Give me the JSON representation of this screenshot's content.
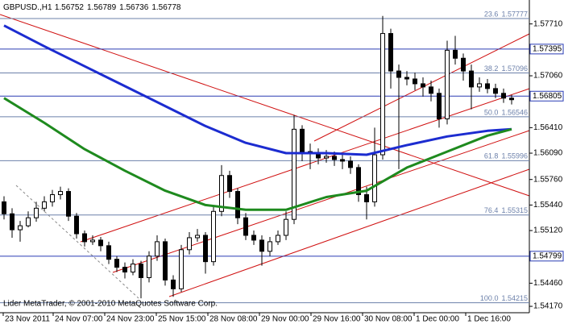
{
  "chart_data": {
    "type": "candlestick",
    "symbol": "GBPUSD.,H1",
    "header_ohlc": [
      1.56752,
      1.56789,
      1.56736,
      1.56778
    ],
    "footer": "Lider MetaTrader, © 2001-2010 MetaQuotes Software Corp.",
    "up_color": "#ffffff",
    "down_color": "#000000",
    "outline_color": "#000000",
    "candles": [
      [
        1.5548,
        1.5555,
        1.5526,
        1.5533
      ],
      [
        1.5533,
        1.554,
        1.5503,
        1.5513
      ],
      [
        1.5513,
        1.5524,
        1.5498,
        1.5518
      ],
      [
        1.5518,
        1.5536,
        1.5516,
        1.5528
      ],
      [
        1.5528,
        1.5548,
        1.5523,
        1.554
      ],
      [
        1.554,
        1.5555,
        1.5536,
        1.5548
      ],
      [
        1.5548,
        1.5563,
        1.5542,
        1.5557
      ],
      [
        1.5557,
        1.5567,
        1.5551,
        1.5561
      ],
      [
        1.5561,
        1.5565,
        1.5524,
        1.553
      ],
      [
        1.553,
        1.5534,
        1.5502,
        1.5508
      ],
      [
        1.5508,
        1.5512,
        1.5492,
        1.5498
      ],
      [
        1.5498,
        1.5506,
        1.5494,
        1.55
      ],
      [
        1.55,
        1.5504,
        1.5486,
        1.5493
      ],
      [
        1.5493,
        1.5498,
        1.547,
        1.5476
      ],
      [
        1.5476,
        1.548,
        1.546,
        1.5466
      ],
      [
        1.5466,
        1.5472,
        1.5452,
        1.546
      ],
      [
        1.546,
        1.5476,
        1.5456,
        1.547
      ],
      [
        1.547,
        1.5474,
        1.5427,
        1.5453
      ],
      [
        1.5453,
        1.5486,
        1.5447,
        1.548
      ],
      [
        1.548,
        1.5506,
        1.5474,
        1.5498
      ],
      [
        1.5498,
        1.5502,
        1.5443,
        1.545
      ],
      [
        1.545,
        1.5456,
        1.5429,
        1.5439
      ],
      [
        1.5439,
        1.5494,
        1.5435,
        1.5488
      ],
      [
        1.5488,
        1.551,
        1.5482,
        1.5503
      ],
      [
        1.5503,
        1.5514,
        1.5498,
        1.5506
      ],
      [
        1.5506,
        1.551,
        1.5458,
        1.5473
      ],
      [
        1.5473,
        1.5542,
        1.5468,
        1.5536
      ],
      [
        1.5536,
        1.5594,
        1.553,
        1.5581
      ],
      [
        1.5581,
        1.5587,
        1.5553,
        1.5561
      ],
      [
        1.5561,
        1.5565,
        1.552,
        1.5528
      ],
      [
        1.5528,
        1.5534,
        1.55,
        1.5506
      ],
      [
        1.5506,
        1.5512,
        1.5494,
        1.55
      ],
      [
        1.55,
        1.5506,
        1.5468,
        1.5486
      ],
      [
        1.5486,
        1.5504,
        1.548,
        1.5498
      ],
      [
        1.5498,
        1.5512,
        1.5494,
        1.5506
      ],
      [
        1.5506,
        1.5536,
        1.55,
        1.5526
      ],
      [
        1.5526,
        1.5657,
        1.552,
        1.5639
      ],
      [
        1.5639,
        1.5644,
        1.5599,
        1.5611
      ],
      [
        1.5611,
        1.5621,
        1.5589,
        1.5609
      ],
      [
        1.5609,
        1.5615,
        1.5595,
        1.5603
      ],
      [
        1.5603,
        1.5613,
        1.5597,
        1.5605
      ],
      [
        1.5605,
        1.5611,
        1.5593,
        1.5601
      ],
      [
        1.5601,
        1.5609,
        1.5589,
        1.5599
      ],
      [
        1.5599,
        1.5605,
        1.5583,
        1.5591
      ],
      [
        1.5591,
        1.5595,
        1.5548,
        1.5557
      ],
      [
        1.5557,
        1.5567,
        1.5526,
        1.5548
      ],
      [
        1.5548,
        1.5641,
        1.5542,
        1.5607
      ],
      [
        1.5607,
        1.5781,
        1.5601,
        1.5759
      ],
      [
        1.5759,
        1.5765,
        1.569,
        1.5712
      ],
      [
        1.5712,
        1.572,
        1.5589,
        1.5704
      ],
      [
        1.5704,
        1.5712,
        1.5694,
        1.5702
      ],
      [
        1.5702,
        1.571,
        1.5688,
        1.5696
      ],
      [
        1.5696,
        1.5704,
        1.568,
        1.5692
      ],
      [
        1.5692,
        1.57,
        1.5674,
        1.5684
      ],
      [
        1.5684,
        1.569,
        1.5641,
        1.5652
      ],
      [
        1.5652,
        1.575,
        1.5645,
        1.5738
      ],
      [
        1.5738,
        1.5756,
        1.572,
        1.5728
      ],
      [
        1.5728,
        1.5734,
        1.57,
        1.5712
      ],
      [
        1.5712,
        1.572,
        1.5664,
        1.5692
      ],
      [
        1.5692,
        1.5704,
        1.5686,
        1.5696
      ],
      [
        1.5696,
        1.5702,
        1.5684,
        1.569
      ],
      [
        1.569,
        1.5696,
        1.5678,
        1.5684
      ],
      [
        1.5684,
        1.569,
        1.5672,
        1.5678
      ],
      [
        1.5678,
        1.5682,
        1.567,
        1.5676
      ]
    ],
    "ma_lines": [
      {
        "color": "#1c2cd0",
        "x": [
          0,
          5,
          10,
          15,
          20,
          25,
          30,
          35,
          40,
          45,
          50,
          55,
          60,
          63
        ],
        "values": [
          1.5769,
          1.5743,
          1.5718,
          1.5693,
          1.5668,
          1.5643,
          1.5622,
          1.5609,
          1.5609,
          1.5607,
          1.5619,
          1.563,
          1.5637,
          1.5639
        ]
      },
      {
        "color": "#1e8a1e",
        "x": [
          0,
          5,
          10,
          15,
          20,
          25,
          30,
          35,
          40,
          45,
          50,
          55,
          60,
          63
        ],
        "values": [
          1.5678,
          1.5647,
          1.5614,
          1.5587,
          1.5562,
          1.5544,
          1.5538,
          1.5538,
          1.5554,
          1.5562,
          1.5591,
          1.5611,
          1.5631,
          1.5639
        ]
      }
    ],
    "hlines": [
      1.57395,
      1.56805,
      1.54799
    ],
    "hline_color": "#2a3cb4",
    "fib_color": "#6c80aa",
    "fib_levels": [
      {
        "ratio": 23.6,
        "price": 1.57777
      },
      {
        "ratio": 38.2,
        "price": 1.57096
      },
      {
        "ratio": {
          "value": 50,
          "label": "50.0"
        },
        "price": 1.56546
      },
      {
        "ratio": 61.8,
        "price": 1.55996
      },
      {
        "ratio": 76.4,
        "price": 1.55315
      },
      {
        "ratio": {
          "value": 100,
          "label": "100.0"
        },
        "price": 1.54215
      }
    ],
    "ylim": [
      1.5409,
      1.5801
    ],
    "yticks": [
      {
        "value": 1.5771,
        "label": "1.57710"
      },
      {
        "value": 1.5706,
        "label": "1.57060"
      },
      {
        "value": 1.5641,
        "label": "1.56410"
      },
      {
        "value": 1.5609,
        "label": "1.56090"
      },
      {
        "value": 1.5576,
        "label": "1.55760"
      },
      {
        "value": 1.5544,
        "label": "1.55440"
      },
      {
        "value": 1.5512,
        "label": "1.55120"
      },
      {
        "value": 1.5446,
        "label": "1.54460"
      },
      {
        "value": 1.5417,
        "label": "1.54170"
      }
    ],
    "xlim": [
      -0.5,
      65.2
    ],
    "xticks": [
      {
        "value": -0.1,
        "label": "23 Nov 2011"
      },
      {
        "value": 6.1,
        "label": "24 Nov 07:00"
      },
      {
        "value": 12.5,
        "label": "24 Nov 23:00"
      },
      {
        "value": 18.9,
        "label": "25 Nov 15:00"
      },
      {
        "value": 25.3,
        "label": "28 Nov 08:00"
      },
      {
        "value": 31.7,
        "label": "29 Nov 00:00"
      },
      {
        "value": 38.1,
        "label": "29 Nov 16:00"
      },
      {
        "value": 44.5,
        "label": "30 Nov 08:00"
      },
      {
        "value": 50.9,
        "label": "1 Dec 00:00"
      },
      {
        "value": 57.3,
        "label": "1 Dec 16:00"
      }
    ]
  }
}
